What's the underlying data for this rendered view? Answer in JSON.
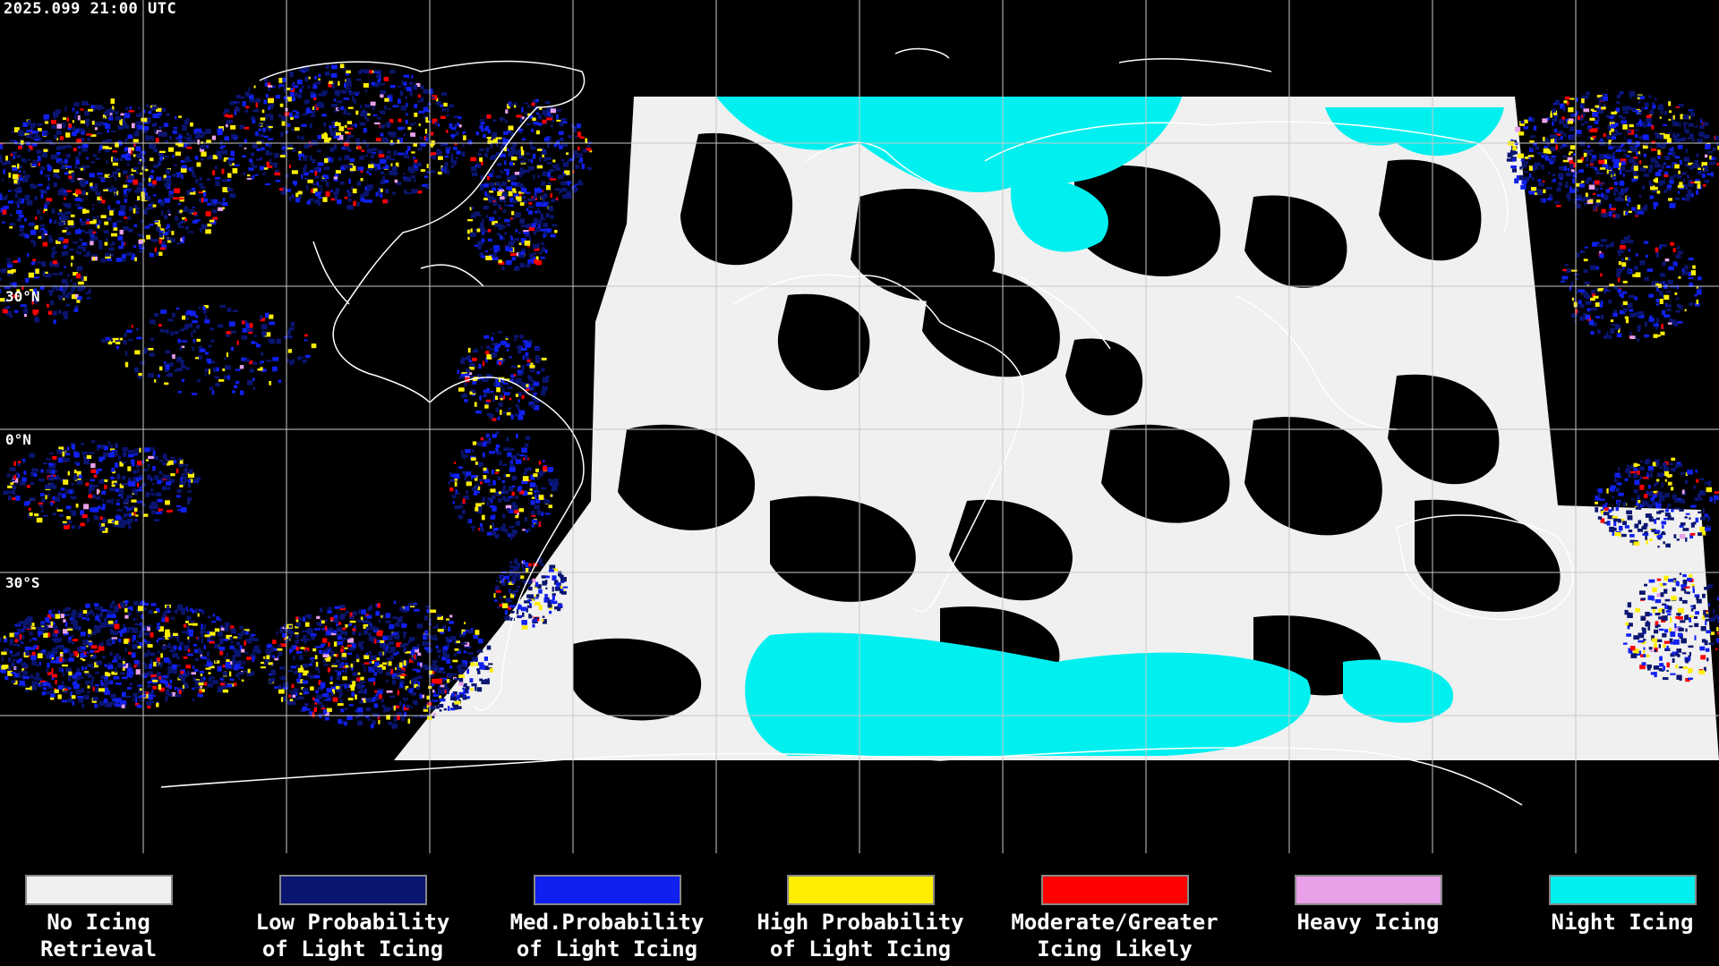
{
  "timestamp": "2025.099 21:00 UTC",
  "latitude_labels": [
    "30°N",
    "0°N",
    "30°S"
  ],
  "legend": [
    {
      "line1": "No Icing",
      "line2": "Retrieval",
      "color": "#f0f0f0"
    },
    {
      "line1": "Low Probability",
      "line2": "of Light Icing",
      "color": "#0a1570"
    },
    {
      "line1": "Med.Probability",
      "line2": "of Light Icing",
      "color": "#1020f0"
    },
    {
      "line1": "High Probability",
      "line2": "of Light Icing",
      "color": "#ffee00"
    },
    {
      "line1": "Moderate/Greater",
      "line2": "Icing Likely",
      "color": "#ff0000"
    },
    {
      "line1": "Heavy Icing",
      "line2": "",
      "color": "#e8a0e8"
    },
    {
      "line1": "Night Icing",
      "line2": "",
      "color": "#00f0f0"
    }
  ]
}
